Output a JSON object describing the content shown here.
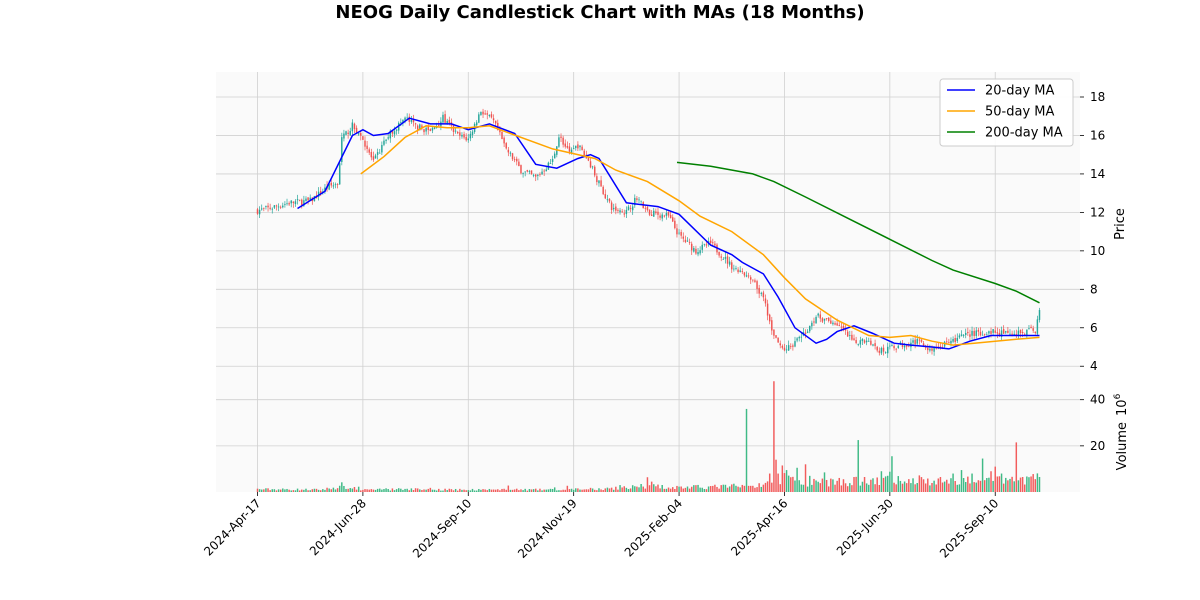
{
  "chart_data": {
    "type": "candlestick",
    "title": "NEOG Daily Candlestick Chart with MAs (18 Months)",
    "price_ylabel": "Price",
    "volume_ylabel": "Volume",
    "volume_exponent_base": "10",
    "volume_exponent": "6",
    "price_ylim": [
      3.7,
      19.3
    ],
    "price_yticks": [
      "4",
      "6",
      "8",
      "10",
      "12",
      "14",
      "16",
      "18"
    ],
    "volume_ylim": [
      0,
      52
    ],
    "volume_yticks": [
      "20",
      "40"
    ],
    "x_ticks": [
      "2024-Apr-17",
      "2024-Jun-28",
      "2024-Sep-10",
      "2024-Nov-19",
      "2025-Feb-04",
      "2025-Apr-16",
      "2025-Jun-30",
      "2025-Sep-10"
    ],
    "x_tick_index": [
      0,
      50,
      100,
      150,
      200,
      250,
      300,
      350
    ],
    "num_days": 372,
    "close_anchors": [
      [
        0,
        12.1
      ],
      [
        5,
        12.2
      ],
      [
        15,
        12.5
      ],
      [
        25,
        12.6
      ],
      [
        33,
        13.3
      ],
      [
        38,
        13.5
      ],
      [
        40,
        15.8
      ],
      [
        45,
        16.5
      ],
      [
        50,
        15.8
      ],
      [
        55,
        14.6
      ],
      [
        62,
        16.0
      ],
      [
        70,
        16.9
      ],
      [
        75,
        16.5
      ],
      [
        82,
        16.2
      ],
      [
        88,
        16.9
      ],
      [
        95,
        16.0
      ],
      [
        100,
        15.8
      ],
      [
        106,
        17.3
      ],
      [
        112,
        16.7
      ],
      [
        118,
        15.3
      ],
      [
        125,
        14.2
      ],
      [
        132,
        13.8
      ],
      [
        140,
        14.7
      ],
      [
        143,
        16.0
      ],
      [
        148,
        15.0
      ],
      [
        152,
        15.5
      ],
      [
        158,
        14.5
      ],
      [
        162,
        13.5
      ],
      [
        168,
        12.2
      ],
      [
        175,
        12.0
      ],
      [
        180,
        12.8
      ],
      [
        185,
        12.0
      ],
      [
        195,
        11.8
      ],
      [
        200,
        10.8
      ],
      [
        208,
        10.0
      ],
      [
        215,
        10.4
      ],
      [
        225,
        9.2
      ],
      [
        235,
        8.4
      ],
      [
        240,
        7.5
      ],
      [
        245,
        5.5
      ],
      [
        250,
        4.8
      ],
      [
        258,
        5.5
      ],
      [
        265,
        6.6
      ],
      [
        275,
        6.2
      ],
      [
        283,
        5.2
      ],
      [
        290,
        5.4
      ],
      [
        295,
        4.8
      ],
      [
        305,
        5.1
      ],
      [
        312,
        5.3
      ],
      [
        320,
        4.9
      ],
      [
        328,
        5.2
      ],
      [
        335,
        5.6
      ],
      [
        345,
        5.8
      ],
      [
        355,
        5.7
      ],
      [
        365,
        5.8
      ],
      [
        369,
        5.9
      ],
      [
        371,
        7.0
      ]
    ],
    "series": [
      {
        "name": "20-day MA",
        "color": "#0000ff",
        "start": 19,
        "points": [
          [
            19,
            12.2
          ],
          [
            32,
            13.1
          ],
          [
            45,
            16.0
          ],
          [
            50,
            16.3
          ],
          [
            55,
            16.0
          ],
          [
            62,
            16.1
          ],
          [
            72,
            16.9
          ],
          [
            82,
            16.6
          ],
          [
            92,
            16.6
          ],
          [
            100,
            16.3
          ],
          [
            110,
            16.6
          ],
          [
            122,
            16.1
          ],
          [
            132,
            14.5
          ],
          [
            142,
            14.3
          ],
          [
            152,
            14.8
          ],
          [
            158,
            15.0
          ],
          [
            162,
            14.8
          ],
          [
            175,
            12.5
          ],
          [
            190,
            12.3
          ],
          [
            200,
            11.9
          ],
          [
            215,
            10.3
          ],
          [
            225,
            9.8
          ],
          [
            230,
            9.4
          ],
          [
            240,
            8.8
          ],
          [
            247,
            7.6
          ],
          [
            255,
            6.0
          ],
          [
            265,
            5.2
          ],
          [
            270,
            5.4
          ],
          [
            275,
            5.8
          ],
          [
            283,
            6.1
          ],
          [
            292,
            5.7
          ],
          [
            302,
            5.2
          ],
          [
            310,
            5.1
          ],
          [
            320,
            5.0
          ],
          [
            328,
            4.9
          ],
          [
            338,
            5.3
          ],
          [
            348,
            5.6
          ],
          [
            358,
            5.6
          ],
          [
            371,
            5.6
          ]
        ]
      },
      {
        "name": "50-day MA",
        "color": "#ffa500",
        "start": 49,
        "points": [
          [
            49,
            14.0
          ],
          [
            60,
            14.9
          ],
          [
            70,
            15.9
          ],
          [
            80,
            16.5
          ],
          [
            90,
            16.4
          ],
          [
            100,
            16.4
          ],
          [
            110,
            16.5
          ],
          [
            120,
            16.1
          ],
          [
            140,
            15.3
          ],
          [
            160,
            14.8
          ],
          [
            170,
            14.2
          ],
          [
            185,
            13.6
          ],
          [
            200,
            12.6
          ],
          [
            210,
            11.8
          ],
          [
            225,
            11.0
          ],
          [
            240,
            9.8
          ],
          [
            250,
            8.6
          ],
          [
            260,
            7.5
          ],
          [
            275,
            6.4
          ],
          [
            290,
            5.6
          ],
          [
            300,
            5.5
          ],
          [
            310,
            5.6
          ],
          [
            320,
            5.3
          ],
          [
            330,
            5.1
          ],
          [
            340,
            5.2
          ],
          [
            350,
            5.3
          ],
          [
            360,
            5.4
          ],
          [
            371,
            5.5
          ]
        ]
      },
      {
        "name": "200-day MA",
        "color": "#008000",
        "start": 199,
        "points": [
          [
            199,
            14.6
          ],
          [
            215,
            14.4
          ],
          [
            235,
            14.0
          ],
          [
            245,
            13.6
          ],
          [
            260,
            12.8
          ],
          [
            280,
            11.7
          ],
          [
            300,
            10.6
          ],
          [
            320,
            9.5
          ],
          [
            330,
            9.0
          ],
          [
            350,
            8.3
          ],
          [
            360,
            7.9
          ],
          [
            371,
            7.3
          ]
        ]
      }
    ],
    "volume_anchors": [
      [
        0,
        1.2
      ],
      [
        30,
        1.0
      ],
      [
        40,
        2.3
      ],
      [
        50,
        1.0
      ],
      [
        70,
        1.2
      ],
      [
        100,
        1.0
      ],
      [
        140,
        1.0
      ],
      [
        160,
        1.3
      ],
      [
        175,
        2.0
      ],
      [
        185,
        2.6
      ],
      [
        200,
        2.0
      ],
      [
        220,
        2.3
      ],
      [
        240,
        3.0
      ],
      [
        245,
        6.0
      ],
      [
        250,
        6.0
      ],
      [
        260,
        4.0
      ],
      [
        280,
        4.5
      ],
      [
        300,
        5.0
      ],
      [
        320,
        4.5
      ],
      [
        340,
        5.0
      ],
      [
        360,
        5.5
      ],
      [
        371,
        6.5
      ]
    ],
    "volume_spikes": [
      [
        40,
        4.2
      ],
      [
        48,
        2.3
      ],
      [
        61,
        1.6
      ],
      [
        82,
        1.8
      ],
      [
        119,
        2.8
      ],
      [
        141,
        2.0
      ],
      [
        147,
        2.7
      ],
      [
        172,
        3.0
      ],
      [
        185,
        6.4
      ],
      [
        187,
        4.5
      ],
      [
        227,
        2.7
      ],
      [
        232,
        36.0
      ],
      [
        243,
        8.0
      ],
      [
        245,
        48.0
      ],
      [
        246,
        14.0
      ],
      [
        249,
        11.5
      ],
      [
        251,
        9.5
      ],
      [
        256,
        10.5
      ],
      [
        260,
        12.0
      ],
      [
        262,
        7.0
      ],
      [
        269,
        8.5
      ],
      [
        285,
        22.5
      ],
      [
        288,
        6.5
      ],
      [
        296,
        9.0
      ],
      [
        300,
        8.8
      ],
      [
        301,
        15.5
      ],
      [
        314,
        7.2
      ],
      [
        324,
        6.5
      ],
      [
        330,
        8.0
      ],
      [
        334,
        9.5
      ],
      [
        339,
        8.0
      ],
      [
        344,
        14.5
      ],
      [
        348,
        9.0
      ],
      [
        350,
        11.0
      ],
      [
        353,
        8.0
      ],
      [
        360,
        21.5
      ],
      [
        363,
        6.5
      ],
      [
        371,
        6.5
      ]
    ],
    "legend_location": "upper right",
    "grid": true,
    "up_color": "#26a69a",
    "down_color": "#ef5350",
    "volume_up_color": "#3fba86",
    "volume_down_color": "#f25c5c"
  }
}
